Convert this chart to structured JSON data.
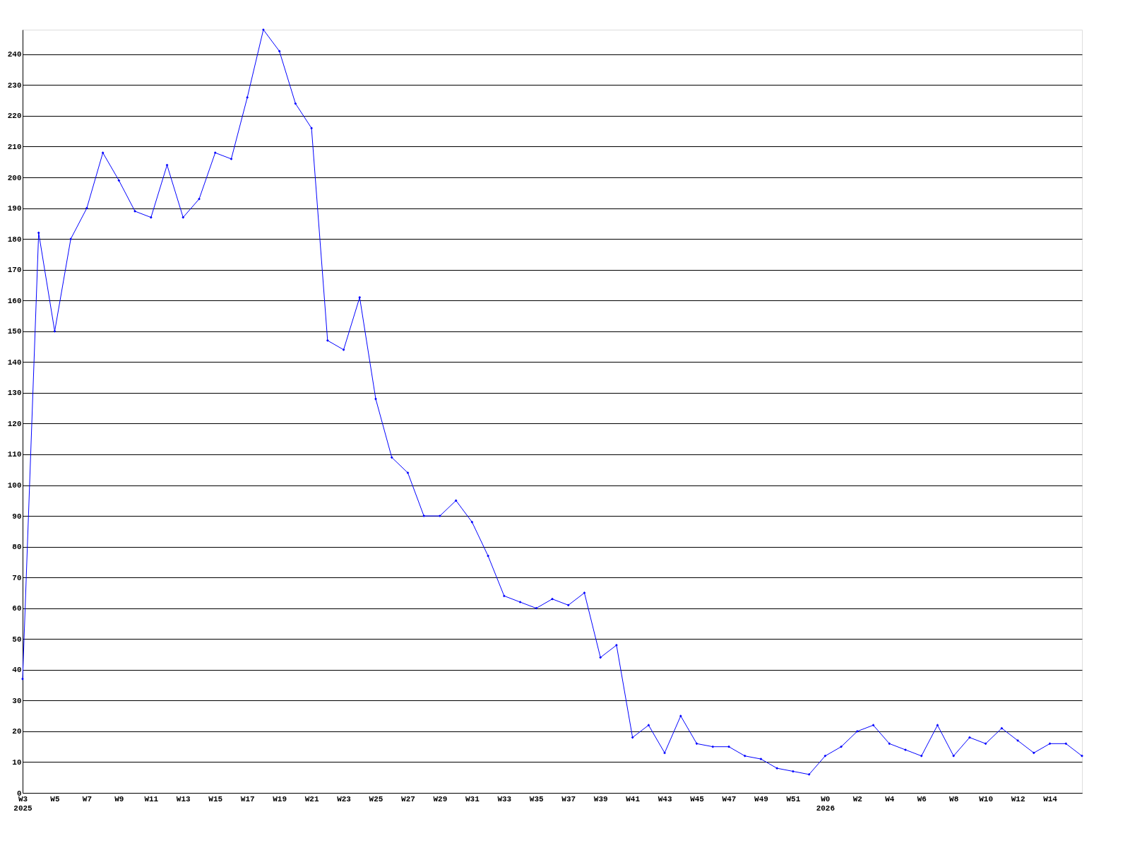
{
  "chart_data": {
    "type": "line",
    "categories": [
      "W3\n2025",
      null,
      "W5",
      null,
      "W7",
      null,
      "W9",
      null,
      "W11",
      null,
      "W13",
      null,
      "W15",
      null,
      "W17",
      null,
      "W19",
      null,
      "W21",
      null,
      "W23",
      null,
      "W25",
      null,
      "W27",
      null,
      "W29",
      null,
      "W31",
      null,
      "W33",
      null,
      "W35",
      null,
      "W37",
      null,
      "W39",
      null,
      "W41",
      null,
      "W43",
      null,
      "W45",
      null,
      "W47",
      null,
      "W49",
      null,
      "W51",
      null,
      "W0\n2026",
      null,
      "W2",
      null,
      "W4",
      null,
      "W6",
      null,
      "W8",
      null,
      "W10",
      null,
      "W12",
      null,
      "W14",
      null,
      null
    ],
    "series": [
      {
        "color": "#0000ff",
        "values": [
          37,
          182,
          150,
          180,
          190,
          208,
          199,
          189,
          187,
          204,
          187,
          193,
          208,
          206,
          226,
          248,
          241,
          224,
          216,
          147,
          144,
          161,
          128,
          109,
          104,
          90,
          90,
          95,
          88,
          77,
          64,
          62,
          60,
          63,
          61,
          65,
          44,
          48,
          18,
          22,
          13,
          25,
          16,
          15,
          15,
          12,
          11,
          8,
          7,
          6,
          12,
          15,
          20,
          22,
          16,
          14,
          12,
          22,
          12,
          18,
          16,
          21,
          17,
          13,
          16,
          16,
          12
        ]
      }
    ],
    "ylim": [
      0,
      248
    ],
    "yticks": [
      0,
      10,
      20,
      30,
      40,
      50,
      60,
      70,
      80,
      90,
      100,
      110,
      120,
      130,
      140,
      150,
      160,
      170,
      180,
      190,
      200,
      210,
      220,
      230,
      240
    ],
    "grid": "y",
    "marker": "diamond",
    "line_style": "solid"
  }
}
